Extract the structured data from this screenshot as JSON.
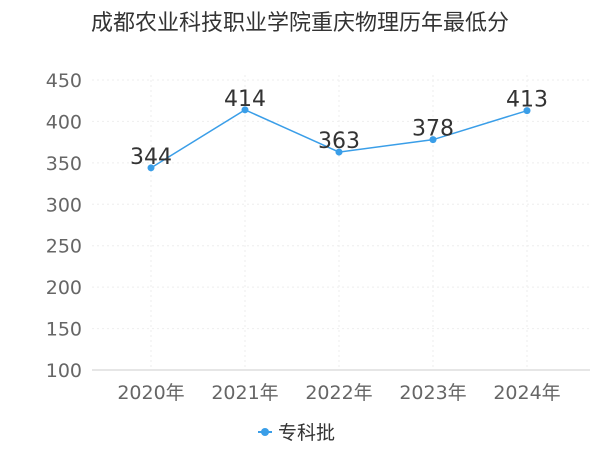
{
  "chart_data": {
    "type": "line",
    "title": "成都农业科技职业学院重庆物理历年最低分",
    "categories": [
      "2020年",
      "2021年",
      "2022年",
      "2023年",
      "2024年"
    ],
    "series": [
      {
        "name": "专科批",
        "values": [
          344,
          414,
          363,
          378,
          413
        ]
      }
    ],
    "ylim": [
      100,
      450
    ],
    "yticks": [
      100,
      150,
      200,
      250,
      300,
      350,
      400,
      450
    ],
    "grid": true,
    "legend": "bottom-center",
    "colors": {
      "series": "#3a9ee8",
      "grid": "#eeeeee",
      "axis": "#cccccc"
    }
  }
}
